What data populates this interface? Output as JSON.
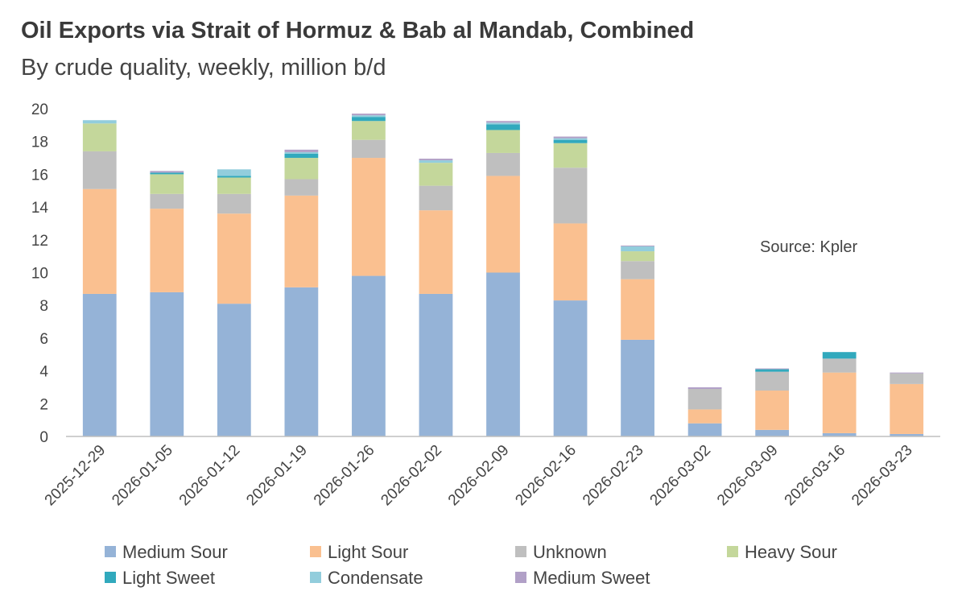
{
  "chart_data": {
    "type": "bar",
    "stacked": true,
    "title": "Oil Exports via Strait of Hormuz & Bab al Mandab, Combined",
    "subtitle": "By crude quality, weekly, million b/d",
    "annotation": "Source: Kpler",
    "xlabel": "",
    "ylabel": "",
    "ylim": [
      0,
      20
    ],
    "yticks": [
      0,
      2,
      4,
      6,
      8,
      10,
      12,
      14,
      16,
      18,
      20
    ],
    "categories": [
      "2025-12-29",
      "2026-01-05",
      "2026-01-12",
      "2026-01-19",
      "2026-01-26",
      "2026-02-02",
      "2026-02-09",
      "2026-02-16",
      "2026-02-23",
      "2026-03-02",
      "2026-03-09",
      "2026-03-16",
      "2026-03-23"
    ],
    "series": [
      {
        "name": "Medium Sour",
        "color": "#95b3d7",
        "values": [
          8.7,
          8.8,
          8.1,
          9.1,
          9.8,
          8.7,
          10.0,
          8.3,
          5.9,
          0.8,
          0.4,
          0.2,
          0.15
        ]
      },
      {
        "name": "Light Sour",
        "color": "#fac090",
        "values": [
          6.4,
          5.1,
          5.5,
          5.6,
          7.2,
          5.1,
          5.9,
          4.7,
          3.7,
          0.85,
          2.4,
          3.7,
          3.05
        ]
      },
      {
        "name": "Unknown",
        "color": "#bfbfbf",
        "values": [
          2.3,
          0.9,
          1.2,
          1.0,
          1.1,
          1.5,
          1.4,
          3.4,
          1.1,
          1.25,
          1.15,
          0.85,
          0.65
        ]
      },
      {
        "name": "Heavy Sour",
        "color": "#c4d79b",
        "values": [
          1.7,
          1.2,
          1.0,
          1.3,
          1.15,
          1.4,
          1.4,
          1.5,
          0.6,
          0,
          0,
          0,
          0
        ]
      },
      {
        "name": "Light Sweet",
        "color": "#31a9bd",
        "values": [
          0,
          0.1,
          0.1,
          0.25,
          0.25,
          0,
          0.35,
          0.2,
          0,
          0,
          0.15,
          0.4,
          0
        ]
      },
      {
        "name": "Condensate",
        "color": "#92cddc",
        "values": [
          0.2,
          0,
          0.4,
          0.1,
          0.1,
          0.15,
          0.1,
          0.1,
          0.3,
          0,
          0,
          0,
          0
        ]
      },
      {
        "name": "Medium Sweet",
        "color": "#b1a0c7",
        "values": [
          0,
          0.1,
          0,
          0.15,
          0.1,
          0.1,
          0.1,
          0.1,
          0.05,
          0.1,
          0.05,
          0,
          0.05
        ]
      }
    ]
  }
}
